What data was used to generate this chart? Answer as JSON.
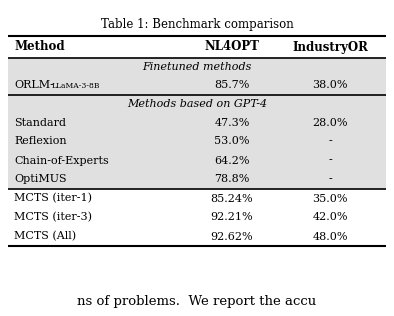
{
  "title": "Table 1: Benchmark comparison",
  "columns": [
    "Method",
    "NL4OPT",
    "IndustryOR"
  ],
  "section1_label": "Finetuned methods",
  "section1_rows": [
    [
      "ORLM-LLaMA-3-8B",
      "85.7%",
      "38.0%"
    ]
  ],
  "section2_label": "Methods based on GPT-4",
  "section2_rows": [
    [
      "Standard",
      "47.3%",
      "28.0%"
    ],
    [
      "Reflexion",
      "53.0%",
      "-"
    ],
    [
      "Chain-of-Experts",
      "64.2%",
      "-"
    ],
    [
      "OptiMUS",
      "78.8%",
      "-"
    ]
  ],
  "section3_rows": [
    [
      "MCTS (iter-1)",
      "85.24%",
      "35.0%"
    ],
    [
      "MCTS (iter-3)",
      "92.21%",
      "42.0%"
    ],
    [
      "MCTS (All)",
      "92.62%",
      "48.0%"
    ]
  ],
  "bg_color_section": "#e0e0e0",
  "bg_color_white": "#ffffff",
  "line_color": "#000000",
  "title_fontsize": 8.5,
  "header_fontsize": 8.5,
  "body_fontsize": 8.0
}
